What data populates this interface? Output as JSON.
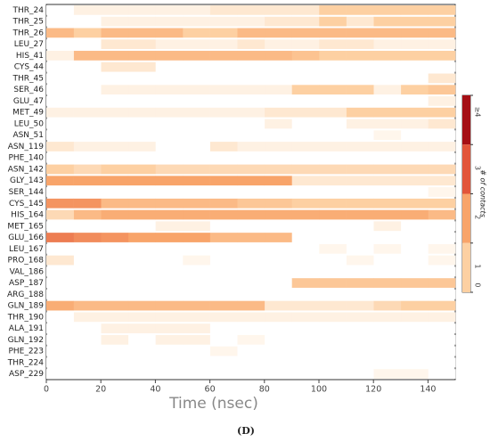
{
  "chart_data": {
    "type": "heatmap",
    "rows": [
      "THR_24",
      "THR_25",
      "THR_26",
      "LEU_27",
      "HIS_41",
      "CYS_44",
      "THR_45",
      "SER_46",
      "GLU_47",
      "MET_49",
      "LEU_50",
      "ASN_51",
      "ASN_119",
      "PHE_140",
      "ASN_142",
      "GLY_143",
      "SER_144",
      "CYS_145",
      "HIS_164",
      "MET_165",
      "GLU_166",
      "LEU_167",
      "PRO_168",
      "VAL_186",
      "ASP_187",
      "ARG_188",
      "GLN_189",
      "THR_190",
      "ALA_191",
      "GLN_192",
      "PHE_223",
      "THR_224",
      "ASP_229"
    ],
    "x_edges": [
      0,
      10,
      20,
      30,
      40,
      50,
      60,
      70,
      80,
      90,
      100,
      110,
      120,
      130,
      140,
      150
    ],
    "values": [
      [
        0,
        0.3,
        0.3,
        0.3,
        0.3,
        0.3,
        0.5,
        0.5,
        0.5,
        0.5,
        1,
        1,
        1,
        1,
        1
      ],
      [
        0,
        0,
        0.3,
        0.3,
        0.3,
        0.3,
        0.3,
        0.3,
        0.5,
        0.5,
        1,
        0.5,
        1,
        1,
        1
      ],
      [
        1.5,
        1,
        1.5,
        1.5,
        1.5,
        1,
        1,
        1.5,
        1.5,
        1.5,
        1.5,
        1.5,
        1.5,
        1.5,
        1.5
      ],
      [
        0,
        0,
        0.5,
        0.5,
        0.3,
        0.3,
        0.3,
        0.5,
        0.3,
        0.3,
        0.5,
        0.5,
        0.3,
        0.3,
        0.3
      ],
      [
        0.3,
        1.5,
        1.5,
        1.5,
        1.5,
        1.5,
        1.5,
        1.5,
        1.5,
        1.3,
        1,
        1,
        1,
        1,
        1
      ],
      [
        0,
        0,
        0.5,
        0.5,
        0,
        0,
        0,
        0,
        0,
        0,
        0,
        0,
        0,
        0,
        0
      ],
      [
        0,
        0,
        0,
        0,
        0,
        0,
        0,
        0,
        0,
        0,
        0,
        0,
        0,
        0,
        0.5
      ],
      [
        0,
        0,
        0.3,
        0.3,
        0.3,
        0.3,
        0.3,
        0.3,
        0.3,
        1,
        1,
        1,
        0.3,
        1,
        1.2
      ],
      [
        0,
        0,
        0,
        0,
        0,
        0,
        0,
        0,
        0,
        0,
        0,
        0,
        0,
        0,
        0.3
      ],
      [
        0.3,
        0.3,
        0.3,
        0.3,
        0.3,
        0.3,
        0.3,
        0.3,
        0.5,
        0.5,
        0.5,
        1,
        1,
        1,
        1
      ],
      [
        0,
        0,
        0,
        0,
        0,
        0,
        0,
        0,
        0.3,
        0,
        0,
        0.3,
        0.3,
        0.3,
        0.5
      ],
      [
        0,
        0,
        0,
        0,
        0,
        0,
        0,
        0,
        0,
        0,
        0,
        0,
        0.2,
        0,
        0
      ],
      [
        0.5,
        0.3,
        0.3,
        0.3,
        0,
        0,
        0.5,
        0.3,
        0.3,
        0.3,
        0.3,
        0.3,
        0.3,
        0.3,
        0.3
      ],
      [
        0,
        0,
        0,
        0,
        0,
        0,
        0,
        0,
        0,
        0,
        0,
        0,
        0,
        0,
        0
      ],
      [
        1,
        0.8,
        1,
        1,
        0.8,
        0.8,
        0.8,
        0.8,
        0.8,
        0.8,
        0.8,
        0.8,
        0.8,
        0.8,
        0.8
      ],
      [
        2,
        2,
        2,
        2,
        2,
        2,
        2,
        2,
        2,
        0.5,
        0.5,
        0.5,
        0.5,
        0.5,
        0.5
      ],
      [
        0,
        0,
        0,
        0,
        0,
        0,
        0,
        0,
        0,
        0,
        0,
        0,
        0,
        0,
        0.2
      ],
      [
        2.2,
        2.2,
        1.5,
        1.5,
        1.5,
        1.5,
        1.5,
        1.2,
        1.2,
        1,
        1,
        1,
        1,
        1,
        1
      ],
      [
        0.8,
        1.5,
        1.8,
        1.8,
        1.8,
        1.8,
        1.8,
        1.8,
        1.8,
        1.8,
        1.8,
        1.8,
        1.8,
        1.8,
        1.5
      ],
      [
        0,
        0,
        0,
        0,
        0.3,
        0.3,
        0,
        0,
        0,
        0,
        0,
        0,
        0.3,
        0,
        0
      ],
      [
        2.5,
        2.3,
        2.2,
        2,
        2,
        2,
        1.5,
        1.5,
        1.5,
        0,
        0,
        0,
        0,
        0,
        0
      ],
      [
        0,
        0,
        0,
        0,
        0,
        0,
        0,
        0,
        0,
        0,
        0.2,
        0,
        0.2,
        0,
        0.2
      ],
      [
        0.5,
        0,
        0,
        0,
        0,
        0.2,
        0,
        0,
        0,
        0,
        0,
        0.2,
        0,
        0,
        0.2
      ],
      [
        0,
        0,
        0,
        0,
        0,
        0,
        0,
        0,
        0,
        0,
        0,
        0,
        0,
        0,
        0
      ],
      [
        0,
        0,
        0,
        0,
        0,
        0,
        0,
        0,
        0,
        1.2,
        1.2,
        1.2,
        1.2,
        1.2,
        1.2
      ],
      [
        0,
        0,
        0,
        0,
        0,
        0,
        0,
        0,
        0,
        0,
        0,
        0,
        0,
        0,
        0
      ],
      [
        1.8,
        1.5,
        1.5,
        1.5,
        1.5,
        1.5,
        1.5,
        1.5,
        0.5,
        0.5,
        0.5,
        0.5,
        0.8,
        1,
        1
      ],
      [
        0,
        0.3,
        0.3,
        0.3,
        0.3,
        0.3,
        0.3,
        0.3,
        0.3,
        0.3,
        0.3,
        0.3,
        0.3,
        0.3,
        0.3
      ],
      [
        0,
        0,
        0.3,
        0.3,
        0.3,
        0.3,
        0,
        0,
        0,
        0,
        0,
        0,
        0,
        0,
        0
      ],
      [
        0,
        0,
        0.3,
        0,
        0.3,
        0.3,
        0,
        0.2,
        0,
        0,
        0,
        0,
        0,
        0,
        0
      ],
      [
        0,
        0,
        0,
        0,
        0,
        0,
        0.2,
        0,
        0,
        0,
        0,
        0,
        0,
        0,
        0
      ],
      [
        0,
        0,
        0,
        0,
        0,
        0,
        0,
        0,
        0,
        0,
        0,
        0,
        0,
        0,
        0
      ],
      [
        0,
        0,
        0,
        0,
        0,
        0,
        0,
        0,
        0,
        0,
        0,
        0,
        0.2,
        0.2,
        0
      ]
    ],
    "xlim": [
      0,
      150
    ],
    "xticks": [
      0,
      20,
      40,
      60,
      80,
      100,
      120,
      140
    ],
    "xlabel": "Time (nsec)",
    "colors": [
      "#ffffff",
      "#fdd0a2",
      "#f8a46a",
      "#e2553a",
      "#a50f15"
    ],
    "clim": [
      0,
      4
    ],
    "cticks": [
      0,
      1,
      2,
      3,
      {
        "value": 4,
        "label": "≥4"
      }
    ],
    "colorbar_label": "# of contacts",
    "caption": "(D)"
  }
}
